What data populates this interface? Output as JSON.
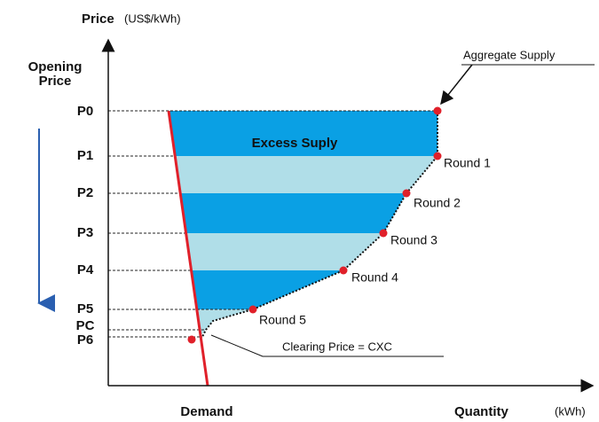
{
  "axes": {
    "y_label": "Price",
    "y_unit": "(US$/kWh)",
    "x_label": "Quantity",
    "x_unit": "(kWh)",
    "demand_label": "Demand"
  },
  "opening_price": [
    "Opening",
    "Price"
  ],
  "price_levels": [
    "P0",
    "P1",
    "P2",
    "P3",
    "P4",
    "P5",
    "PC",
    "P6"
  ],
  "region_label": "Excess Suply",
  "aggregate_supply_label": "Aggregate Supply",
  "rounds": [
    "Round 1",
    "Round 2",
    "Round 3",
    "Round 4",
    "Round 5"
  ],
  "clearing_label": "Clearing Price = CXC"
}
